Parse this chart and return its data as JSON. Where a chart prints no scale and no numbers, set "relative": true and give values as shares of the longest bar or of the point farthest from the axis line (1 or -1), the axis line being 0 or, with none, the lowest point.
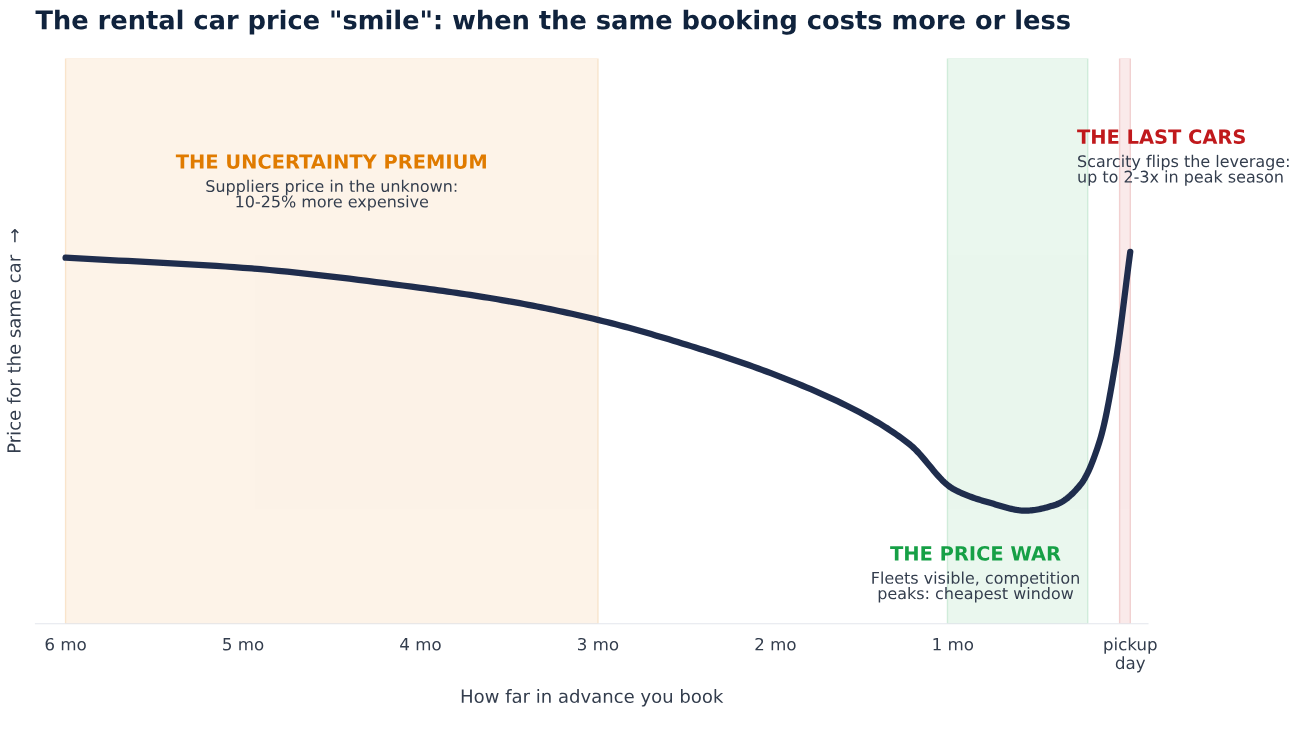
{
  "chart_data": {
    "type": "line",
    "relative": true,
    "title": "The rental car price \"smile\": when the same booking costs more or less",
    "xlabel": "How far in advance you book",
    "ylabel": "Price for the same car  →",
    "xlim": [
      6.17,
      -0.1
    ],
    "xticks": [
      {
        "value": 6,
        "label": "6 mo"
      },
      {
        "value": 5,
        "label": "5 mo"
      },
      {
        "value": 4,
        "label": "4 mo"
      },
      {
        "value": 3,
        "label": "3 mo"
      },
      {
        "value": 2,
        "label": "2 mo"
      },
      {
        "value": 1,
        "label": "1 mo"
      },
      {
        "value": 0,
        "label": "pickup\nday"
      }
    ],
    "grid": false,
    "legend": false,
    "line_style": "solid",
    "series": [
      {
        "color": "#1f2d4d",
        "x": [
          6.0,
          5.0,
          4.0,
          3.49,
          3.0,
          2.5,
          2.0,
          1.5,
          1.24,
          1.0,
          0.79,
          0.59,
          0.42,
          0.28,
          0.17,
          0.085,
          0.0
        ],
        "values": [
          0.984,
          0.957,
          0.903,
          0.866,
          0.817,
          0.75,
          0.669,
          0.562,
          0.481,
          0.363,
          0.325,
          0.304,
          0.32,
          0.374,
          0.495,
          0.696,
          1.0
        ]
      }
    ],
    "bands": [
      {
        "axis": "x",
        "from": 6,
        "to": 3,
        "label": "THE UNCERTAINTY PREMIUM",
        "color": "#e07b00"
      },
      {
        "axis": "x",
        "from": 1.03,
        "to": 0.24,
        "label": "THE PRICE WAR",
        "color": "#16a046"
      },
      {
        "axis": "x",
        "from": 0.06,
        "to": 0,
        "label": "THE LAST CARS",
        "color": "#c0191c"
      }
    ],
    "annotations": [
      "Suppliers price in the unknown:\n10-25% more expensive",
      "Fleets visible, competition\npeaks: cheapest window",
      "Scarcity flips the leverage:\nup to 2-3x in peak season"
    ]
  }
}
